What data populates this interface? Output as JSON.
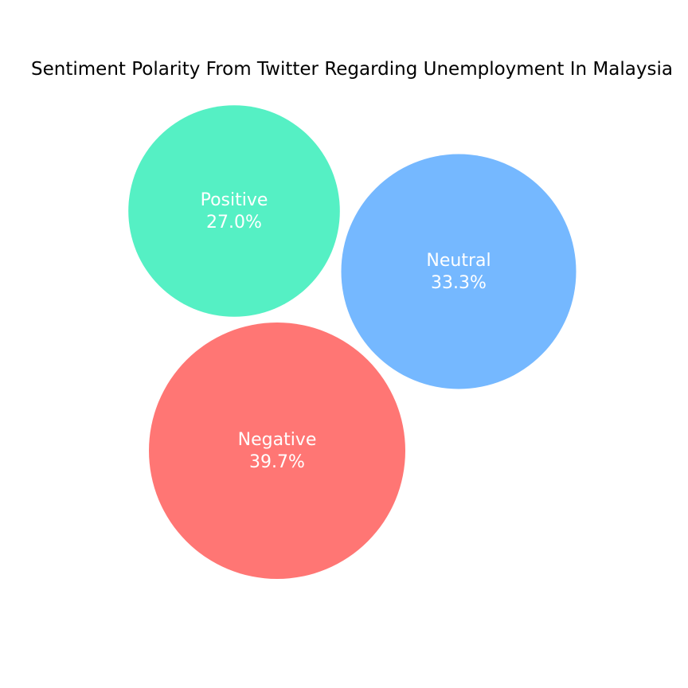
{
  "chart_data": {
    "type": "bubble",
    "title": "Sentiment Polarity From Twitter Regarding Unemployment In Malaysia",
    "series": [
      {
        "name": "Positive",
        "value_label": "27.0%",
        "value": 27.0,
        "color": "#55f0c4"
      },
      {
        "name": "Neutral",
        "value_label": "33.3%",
        "value": 33.3,
        "color": "#75b8ff"
      },
      {
        "name": "Negative",
        "value_label": "39.7%",
        "value": 39.7,
        "color": "#ff7674"
      }
    ]
  }
}
